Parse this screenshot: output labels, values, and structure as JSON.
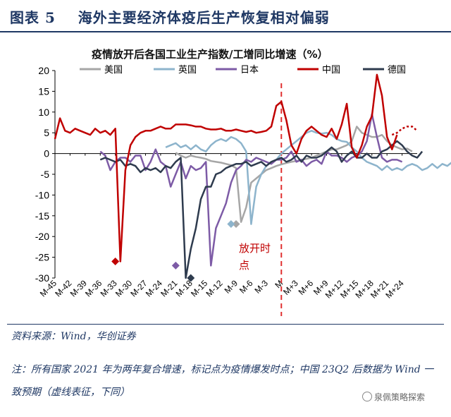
{
  "figure": {
    "label": "图表 5",
    "title": "海外主要经济体疫后生产恢复相对偏弱",
    "source": "资料来源：Wind，华创证券",
    "note": "注：所有国家 2021 年为两年复合增速，标记点为疫情爆发时点；中国 23Q2 后数据为 Wind 一致预期（虚线表征，下同）",
    "watermark": "泉佩策略探索"
  },
  "chart_data": {
    "type": "line",
    "title": "疫情放开后各国工业生产指数/工增同比增速（%）",
    "xlabel": "",
    "ylabel": "",
    "ylim": [
      -30,
      20
    ],
    "yticks": [
      20,
      15,
      10,
      5,
      0,
      -5,
      -10,
      -15,
      -20,
      -25,
      -30
    ],
    "x_start": -45,
    "x_end": 27,
    "xtick_labels": [
      "M-45",
      "M-42",
      "M-39",
      "M-36",
      "M-33",
      "M-30",
      "M-27",
      "M-24",
      "M-21",
      "M-18",
      "M-15",
      "M-12",
      "M-9",
      "M-6",
      "M-3",
      "M",
      "M+3",
      "M+6",
      "M+9",
      "M+12",
      "M+15",
      "M+18",
      "M+21",
      "M+24"
    ],
    "xtick_values": [
      -45,
      -42,
      -39,
      -36,
      -33,
      -30,
      -27,
      -24,
      -21,
      -18,
      -15,
      -12,
      -9,
      -6,
      -3,
      0,
      3,
      6,
      9,
      12,
      15,
      18,
      21,
      24
    ],
    "annotation": {
      "text": "放开时点",
      "x": 0
    },
    "grid": false,
    "legend_position": "top",
    "series": [
      {
        "name": "美国",
        "color": "#a6a6a6",
        "x_start": -21,
        "values": [
          0.2,
          -0.5,
          -1.0,
          -0.5,
          -0.8,
          -1.0,
          -1.3,
          -1.8,
          -2.0,
          -2.2,
          -2.5,
          -2.8,
          -3.5,
          -16.5,
          -13,
          -7,
          -6,
          -5,
          -4,
          -3.5,
          -3,
          -2.6,
          -2.3,
          -2,
          -1.8,
          -1.5,
          -1.3,
          -1,
          -0.5,
          0,
          0.5,
          1,
          1,
          1.5,
          2,
          3,
          6.5,
          5,
          4.5,
          4,
          4,
          4.5,
          3,
          2,
          1.5,
          1,
          1.2,
          0.5
        ],
        "marker": {
          "x": -9,
          "y": -17
        }
      },
      {
        "name": "英国",
        "color": "#8db4cc",
        "x_start": -23,
        "values": [
          1.5,
          2,
          2.5,
          1.5,
          2,
          1,
          2,
          1,
          0.5,
          2,
          3,
          3.5,
          3,
          4,
          3.5,
          2.5,
          0.5,
          -17,
          -8,
          -5,
          -3,
          -2,
          -1.5,
          0,
          1,
          2,
          3,
          4,
          5,
          5.5,
          5,
          4.8,
          5,
          4.5,
          3.5,
          3,
          2.8,
          1.5,
          0.5,
          -1,
          -2,
          -2.5,
          -3,
          -4,
          -3,
          -4,
          -3.5,
          -4,
          -3,
          -2.5,
          -3,
          -4,
          -3.5,
          -2.5,
          -3.5,
          -2.5,
          -3,
          -2,
          0.5
        ],
        "marker": {
          "x": -10,
          "y": -17
        }
      },
      {
        "name": "日本",
        "color": "#7d5ba6",
        "x_start": -36,
        "values": [
          0.5,
          -0.5,
          -4,
          -2,
          -1,
          -1,
          -2,
          -0.5,
          -0.5,
          -4,
          -2,
          1,
          -2,
          -3,
          -8,
          -5,
          -2,
          -6,
          -3,
          -4,
          -3.5,
          -2,
          -27,
          -18,
          -15,
          -12,
          -7,
          -4,
          -3,
          -1.5,
          -2,
          -1,
          -1.5,
          -2,
          -2.5,
          -1.5,
          -1.5,
          -1,
          0.5,
          -2,
          -1.5,
          -3,
          -2,
          -1.5,
          -2.5,
          0.5,
          -0.5,
          -0.5,
          -1,
          -2,
          -1,
          -0.5,
          0.5,
          3,
          9.5,
          4,
          -1,
          -2,
          -1.5,
          -1.5,
          -2
        ],
        "marker": {
          "x": -21,
          "y": -27
        }
      },
      {
        "name": "中国",
        "color": "#c00000",
        "x_start": -45,
        "values": [
          3.5,
          8.5,
          5.5,
          5,
          6,
          5.5,
          5,
          4.5,
          6,
          5,
          5.5,
          4.5,
          6,
          -26,
          -4,
          2,
          4,
          5,
          5.5,
          5.5,
          6,
          6.5,
          6,
          6,
          7,
          7,
          7,
          6.8,
          6.5,
          6.5,
          6,
          5.8,
          5.8,
          6,
          5.5,
          5.5,
          5.8,
          5.5,
          5.2,
          5.5,
          5,
          5.2,
          5.5,
          6.5,
          11.5,
          12.5,
          8,
          2,
          0,
          3.5,
          5.5,
          6.5,
          5.5,
          4.5,
          4,
          6,
          3.5,
          7,
          12,
          1.5,
          -1,
          2,
          6.5,
          9,
          19,
          14,
          4,
          1,
          4.5
        ],
        "dashed_from": 22,
        "dashed_values": [
          4.5,
          5,
          6,
          6.5,
          6.5,
          5.5
        ],
        "marker": {
          "x": -33,
          "y": -26
        }
      },
      {
        "name": "德国",
        "color": "#2e3b4e",
        "x_start": -36,
        "values": [
          -1.5,
          -1,
          -1.5,
          -2,
          -1.5,
          -3,
          -2.5,
          -3,
          -4.5,
          -3.5,
          -4,
          -3.5,
          -4.5,
          -3,
          -3.5,
          -2,
          -1,
          -30,
          -23,
          -18,
          -11,
          -8,
          -8,
          -5,
          -4.5,
          -3.5,
          -3,
          -2.5,
          -2.5,
          -2,
          -3,
          -2.5,
          -2,
          -3,
          -2,
          -1.5,
          -1,
          -2,
          -1.5,
          -0.5,
          -2,
          -0.5,
          -1,
          -1,
          -0.5,
          0.5,
          1.5,
          0.5,
          -2,
          -0.5,
          0.5,
          -1,
          -1,
          0,
          -1,
          -1,
          0.5,
          1,
          2,
          3,
          2,
          0.5,
          -0.5,
          -1,
          0.5
        ],
        "marker": {
          "x": -18,
          "y": -30
        }
      }
    ]
  }
}
